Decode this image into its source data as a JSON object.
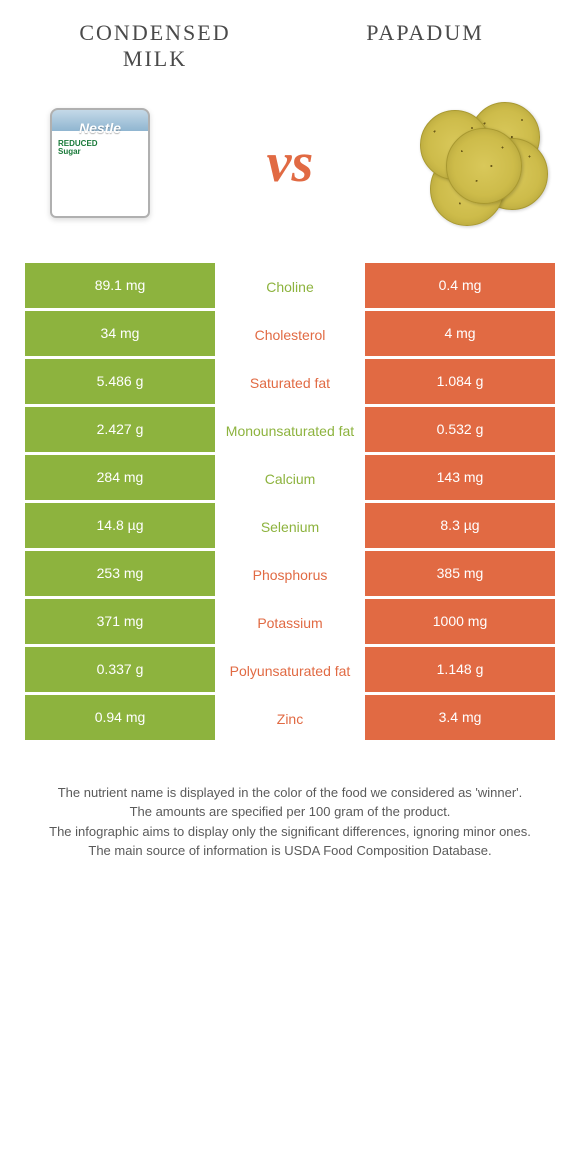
{
  "titles": {
    "left_line1": "CONDENSED",
    "left_line2": "MILK",
    "right": "PAPADUM"
  },
  "vs_text": "vs",
  "colors": {
    "left": "#8db33e",
    "right": "#e16a43",
    "text_dark": "#4a4a4a",
    "footer_text": "#5a5a5a"
  },
  "nutrients": [
    {
      "name": "Choline",
      "left": "89.1 mg",
      "right": "0.4 mg",
      "winner": "left"
    },
    {
      "name": "Cholesterol",
      "left": "34 mg",
      "right": "4 mg",
      "winner": "right"
    },
    {
      "name": "Saturated fat",
      "left": "5.486 g",
      "right": "1.084 g",
      "winner": "right"
    },
    {
      "name": "Monounsaturated fat",
      "left": "2.427 g",
      "right": "0.532 g",
      "winner": "left"
    },
    {
      "name": "Calcium",
      "left": "284 mg",
      "right": "143 mg",
      "winner": "left"
    },
    {
      "name": "Selenium",
      "left": "14.8 µg",
      "right": "8.3 µg",
      "winner": "left"
    },
    {
      "name": "Phosphorus",
      "left": "253 mg",
      "right": "385 mg",
      "winner": "right"
    },
    {
      "name": "Potassium",
      "left": "371 mg",
      "right": "1000 mg",
      "winner": "right"
    },
    {
      "name": "Polyunsaturated fat",
      "left": "0.337 g",
      "right": "1.148 g",
      "winner": "right"
    },
    {
      "name": "Zinc",
      "left": "0.94 mg",
      "right": "3.4 mg",
      "winner": "right"
    }
  ],
  "footer_lines": [
    "The nutrient name is displayed in the color of the food we considered as 'winner'.",
    "The amounts are specified per 100 gram of the product.",
    "The infographic aims to display only the significant differences, ignoring minor ones.",
    "The main source of information is USDA Food Composition Database."
  ]
}
